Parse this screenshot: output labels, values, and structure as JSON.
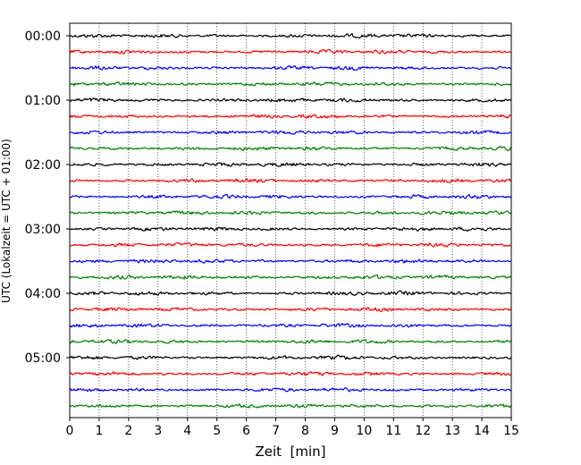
{
  "chart_data": {
    "type": "line",
    "title": "",
    "xlabel": "Zeit  [min]",
    "ylabel": "UTC (Lokalzeit = UTC + 01:00)",
    "xlim": [
      0,
      15
    ],
    "xticks": [
      "0",
      "1",
      "2",
      "3",
      "4",
      "5",
      "6",
      "7",
      "8",
      "9",
      "10",
      "11",
      "12",
      "13",
      "14",
      "15"
    ],
    "yticks": [
      "00:00",
      "01:00",
      "02:00",
      "03:00",
      "04:00",
      "05:00"
    ],
    "grid": "vertical-dotted",
    "trace_count": 24,
    "trace_minutes_each": 15,
    "trace_colors": [
      "#000000",
      "#ff0000",
      "#0000ff",
      "#007f00"
    ],
    "traces": [
      {
        "start": "00:00",
        "color": "#000000"
      },
      {
        "start": "00:15",
        "color": "#ff0000"
      },
      {
        "start": "00:30",
        "color": "#0000ff"
      },
      {
        "start": "00:45",
        "color": "#007f00"
      },
      {
        "start": "01:00",
        "color": "#000000"
      },
      {
        "start": "01:15",
        "color": "#ff0000"
      },
      {
        "start": "01:30",
        "color": "#0000ff"
      },
      {
        "start": "01:45",
        "color": "#007f00"
      },
      {
        "start": "02:00",
        "color": "#000000"
      },
      {
        "start": "02:15",
        "color": "#ff0000"
      },
      {
        "start": "02:30",
        "color": "#0000ff"
      },
      {
        "start": "02:45",
        "color": "#007f00"
      },
      {
        "start": "03:00",
        "color": "#000000"
      },
      {
        "start": "03:15",
        "color": "#ff0000"
      },
      {
        "start": "03:30",
        "color": "#0000ff"
      },
      {
        "start": "03:45",
        "color": "#007f00"
      },
      {
        "start": "04:00",
        "color": "#000000"
      },
      {
        "start": "04:15",
        "color": "#ff0000"
      },
      {
        "start": "04:30",
        "color": "#0000ff"
      },
      {
        "start": "04:45",
        "color": "#007f00"
      },
      {
        "start": "05:00",
        "color": "#000000"
      },
      {
        "start": "05:15",
        "color": "#ff0000"
      },
      {
        "start": "05:30",
        "color": "#0000ff"
      },
      {
        "start": "05:45",
        "color": "#007f00"
      }
    ]
  }
}
